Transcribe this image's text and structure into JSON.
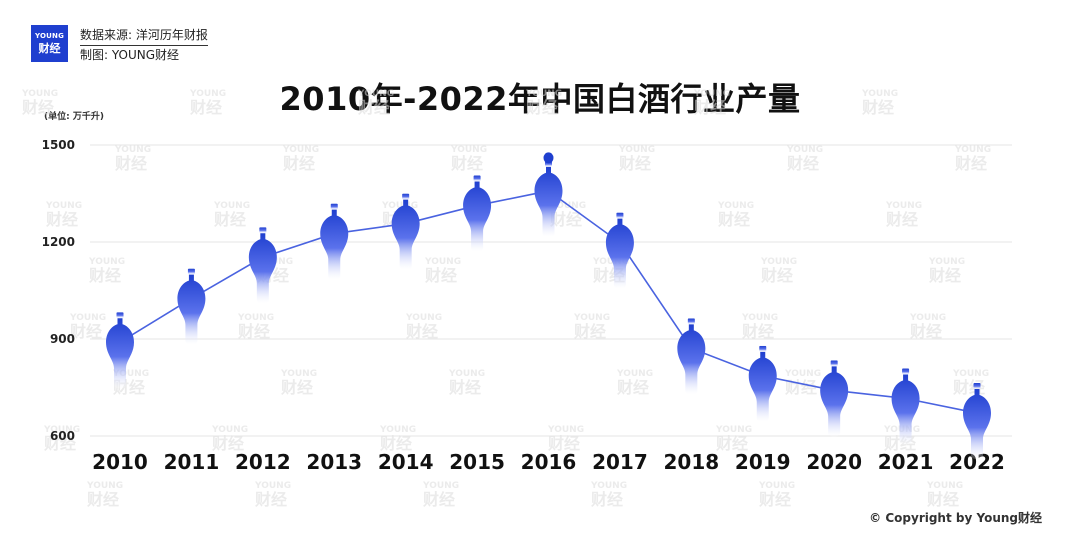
{
  "header": {
    "logo_line1": "YOUNG",
    "logo_line2": "财经",
    "source": "数据来源: 洋河历年财报",
    "maker": "制图: YOUNG财经"
  },
  "footer": {
    "copyright": "© Copyright by Young财经"
  },
  "watermark": {
    "line1": "YOUNG",
    "line2": "财经"
  },
  "colors": {
    "accent": "#1f3fcf",
    "line": "#4a63e0",
    "grid": "#e6e6e6"
  },
  "chart_data": {
    "type": "line",
    "title": "2010年-2022年中国白酒行业产量",
    "unit_label": "(单位: 万千升)",
    "x": [
      "2010",
      "2011",
      "2012",
      "2013",
      "2014",
      "2015",
      "2016",
      "2017",
      "2018",
      "2019",
      "2020",
      "2021",
      "2022"
    ],
    "values": [
      890,
      1025,
      1153,
      1226,
      1257,
      1313,
      1358,
      1198,
      871,
      786,
      741,
      716,
      671
    ],
    "yticks": [
      600,
      900,
      1200,
      1500
    ],
    "ylim": [
      600,
      1500
    ],
    "grid": true,
    "marker": "bottle-icon",
    "highlight": "2016"
  }
}
